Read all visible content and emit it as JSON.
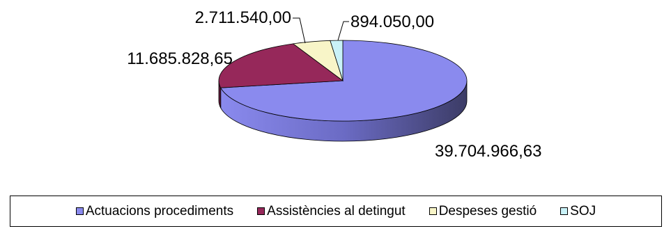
{
  "chart_data": {
    "type": "pie",
    "title": "",
    "categories": [
      "Actuacions procediments",
      "Assistències al detingut",
      "Despeses gestió",
      "SOJ"
    ],
    "values": [
      39704966.63,
      11685828.65,
      2711540.0,
      894050.0
    ],
    "value_labels": [
      "39.704.966,63",
      "11.685.828,65",
      "2.711.540,00",
      "894.050,00"
    ],
    "colors": [
      "#8A8AEE",
      "#96285A",
      "#F8F5C8",
      "#C9F2F8"
    ],
    "legend": "bottom",
    "style": "3d-exploded-none"
  }
}
